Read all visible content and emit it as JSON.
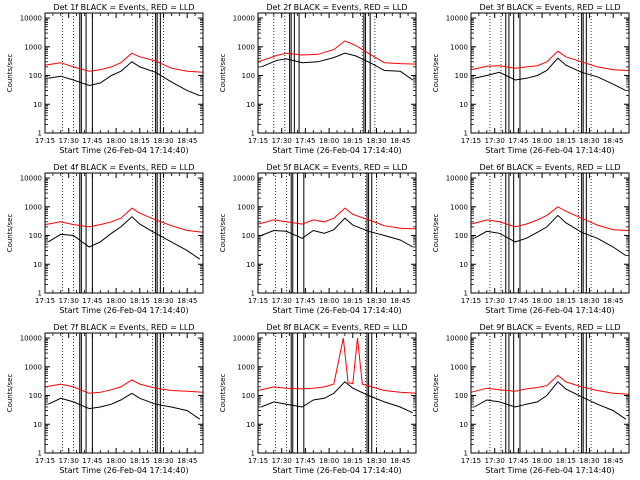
{
  "chart_data": {
    "type": "line",
    "x_tick_labels": [
      "17:15",
      "17:30",
      "17:45",
      "18:00",
      "18:15",
      "18:30",
      "18:45"
    ],
    "x_ticks_min": [
      0,
      15,
      30,
      45,
      60,
      75,
      90
    ],
    "x_range_min": [
      0,
      100
    ],
    "y_tick_labels": [
      "1",
      "10",
      "100",
      "1000",
      "10000"
    ],
    "y_range": [
      1,
      15000
    ],
    "y_scale": "log",
    "series_colors": {
      "events": "#000000",
      "lld": "#ff0000"
    },
    "panels": [
      {
        "title": "Det 1f BLACK = Events, RED = LLD",
        "ylabel": "Counts/sec",
        "xlabel": "Start Time (26-Feb-04 17:14:40)",
        "red": [
          [
            0,
            230
          ],
          [
            10,
            280
          ],
          [
            18,
            200
          ],
          [
            28,
            140
          ],
          [
            35,
            160
          ],
          [
            42,
            200
          ],
          [
            48,
            280
          ],
          [
            55,
            600
          ],
          [
            60,
            450
          ],
          [
            70,
            320
          ],
          [
            80,
            180
          ],
          [
            90,
            140
          ],
          [
            100,
            130
          ]
        ],
        "black": [
          [
            2,
            80
          ],
          [
            10,
            95
          ],
          [
            18,
            70
          ],
          [
            28,
            45
          ],
          [
            35,
            55
          ],
          [
            42,
            100
          ],
          [
            48,
            140
          ],
          [
            55,
            300
          ],
          [
            60,
            200
          ],
          [
            70,
            130
          ],
          [
            80,
            60
          ],
          [
            90,
            30
          ],
          [
            98,
            20
          ]
        ],
        "vlines_dotted": [
          11,
          18,
          68,
          75
        ],
        "vlines_solid": [
          22,
          23,
          26,
          30,
          70,
          71,
          73
        ]
      },
      {
        "title": "Det 2f BLACK = Events, RED = LLD",
        "ylabel": "Counts/sec",
        "xlabel": "Start Time (26-Feb-04 17:14:40)",
        "red": [
          [
            0,
            300
          ],
          [
            12,
            500
          ],
          [
            18,
            600
          ],
          [
            28,
            520
          ],
          [
            38,
            550
          ],
          [
            48,
            800
          ],
          [
            55,
            1600
          ],
          [
            62,
            1100
          ],
          [
            72,
            500
          ],
          [
            80,
            280
          ],
          [
            90,
            260
          ],
          [
            100,
            250
          ]
        ],
        "black": [
          [
            2,
            200
          ],
          [
            12,
            340
          ],
          [
            18,
            380
          ],
          [
            28,
            280
          ],
          [
            38,
            300
          ],
          [
            48,
            420
          ],
          [
            55,
            600
          ],
          [
            62,
            480
          ],
          [
            72,
            260
          ],
          [
            80,
            150
          ],
          [
            90,
            140
          ],
          [
            98,
            70
          ]
        ],
        "vlines_dotted": [
          10,
          17,
          66,
          74
        ],
        "vlines_solid": [
          20,
          21,
          23,
          26,
          67,
          68,
          71
        ]
      },
      {
        "title": "Det 3f BLACK = Events, RED = LLD",
        "ylabel": "Counts/sec",
        "xlabel": "Start Time (26-Feb-04 17:14:40)",
        "red": [
          [
            0,
            160
          ],
          [
            10,
            210
          ],
          [
            18,
            220
          ],
          [
            28,
            180
          ],
          [
            35,
            200
          ],
          [
            42,
            220
          ],
          [
            48,
            300
          ],
          [
            55,
            700
          ],
          [
            60,
            450
          ],
          [
            70,
            300
          ],
          [
            80,
            200
          ],
          [
            90,
            160
          ],
          [
            100,
            150
          ]
        ],
        "black": [
          [
            2,
            80
          ],
          [
            10,
            100
          ],
          [
            18,
            130
          ],
          [
            28,
            70
          ],
          [
            35,
            80
          ],
          [
            42,
            100
          ],
          [
            48,
            150
          ],
          [
            55,
            400
          ],
          [
            60,
            230
          ],
          [
            70,
            130
          ],
          [
            80,
            90
          ],
          [
            90,
            50
          ],
          [
            98,
            30
          ]
        ],
        "vlines_dotted": [
          12,
          19,
          68,
          76
        ],
        "vlines_solid": [
          22,
          24,
          27,
          31,
          70,
          71,
          73
        ]
      },
      {
        "title": "Det 4f BLACK = Events, RED = LLD",
        "ylabel": "Counts/sec",
        "xlabel": "Start Time (26-Feb-04 17:14:40)",
        "red": [
          [
            0,
            240
          ],
          [
            10,
            300
          ],
          [
            18,
            240
          ],
          [
            28,
            200
          ],
          [
            35,
            240
          ],
          [
            42,
            300
          ],
          [
            48,
            400
          ],
          [
            55,
            900
          ],
          [
            60,
            600
          ],
          [
            70,
            350
          ],
          [
            80,
            220
          ],
          [
            90,
            150
          ],
          [
            100,
            130
          ]
        ],
        "black": [
          [
            2,
            60
          ],
          [
            10,
            110
          ],
          [
            18,
            100
          ],
          [
            28,
            40
          ],
          [
            35,
            60
          ],
          [
            42,
            120
          ],
          [
            48,
            200
          ],
          [
            55,
            450
          ],
          [
            60,
            250
          ],
          [
            70,
            120
          ],
          [
            80,
            60
          ],
          [
            90,
            30
          ],
          [
            98,
            15
          ]
        ],
        "vlines_dotted": [
          11,
          18,
          68,
          75
        ],
        "vlines_solid": [
          22,
          23,
          26,
          30,
          70,
          71,
          73
        ]
      },
      {
        "title": "Det 5f BLACK = Events, RED = LLD",
        "ylabel": "Counts/sec",
        "xlabel": "Start Time (26-Feb-04 17:14:40)",
        "red": [
          [
            0,
            250
          ],
          [
            10,
            350
          ],
          [
            18,
            300
          ],
          [
            28,
            250
          ],
          [
            35,
            350
          ],
          [
            42,
            300
          ],
          [
            48,
            400
          ],
          [
            55,
            900
          ],
          [
            60,
            550
          ],
          [
            70,
            350
          ],
          [
            80,
            220
          ],
          [
            90,
            180
          ],
          [
            100,
            170
          ]
        ],
        "black": [
          [
            2,
            100
          ],
          [
            10,
            150
          ],
          [
            18,
            140
          ],
          [
            28,
            80
          ],
          [
            35,
            150
          ],
          [
            42,
            120
          ],
          [
            48,
            160
          ],
          [
            55,
            400
          ],
          [
            60,
            230
          ],
          [
            70,
            140
          ],
          [
            80,
            100
          ],
          [
            90,
            70
          ],
          [
            98,
            40
          ]
        ],
        "vlines_dotted": [
          11,
          18,
          68,
          75
        ],
        "vlines_solid": [
          21,
          22,
          25,
          29,
          69,
          70,
          72
        ]
      },
      {
        "title": "Det 6f BLACK = Events, RED = LLD",
        "ylabel": "Counts/sec",
        "xlabel": "Start Time (26-Feb-04 17:14:40)",
        "red": [
          [
            0,
            250
          ],
          [
            10,
            350
          ],
          [
            18,
            300
          ],
          [
            28,
            200
          ],
          [
            35,
            250
          ],
          [
            42,
            350
          ],
          [
            48,
            500
          ],
          [
            55,
            1000
          ],
          [
            60,
            700
          ],
          [
            70,
            400
          ],
          [
            80,
            230
          ],
          [
            90,
            160
          ],
          [
            100,
            150
          ]
        ],
        "black": [
          [
            2,
            80
          ],
          [
            10,
            140
          ],
          [
            18,
            120
          ],
          [
            28,
            60
          ],
          [
            35,
            80
          ],
          [
            42,
            130
          ],
          [
            48,
            200
          ],
          [
            55,
            500
          ],
          [
            60,
            280
          ],
          [
            70,
            130
          ],
          [
            80,
            80
          ],
          [
            90,
            40
          ],
          [
            98,
            20
          ]
        ],
        "vlines_dotted": [
          12,
          19,
          68,
          76
        ],
        "vlines_solid": [
          22,
          24,
          27,
          31,
          70,
          71,
          73
        ]
      },
      {
        "title": "Det 7f BLACK = Events, RED = LLD",
        "ylabel": "Counts/sec",
        "xlabel": "Start Time (26-Feb-04 17:14:40)",
        "red": [
          [
            0,
            200
          ],
          [
            10,
            250
          ],
          [
            18,
            200
          ],
          [
            28,
            120
          ],
          [
            35,
            130
          ],
          [
            42,
            160
          ],
          [
            48,
            200
          ],
          [
            55,
            350
          ],
          [
            60,
            250
          ],
          [
            70,
            180
          ],
          [
            80,
            150
          ],
          [
            90,
            140
          ],
          [
            100,
            130
          ]
        ],
        "black": [
          [
            2,
            50
          ],
          [
            10,
            80
          ],
          [
            18,
            60
          ],
          [
            28,
            35
          ],
          [
            35,
            40
          ],
          [
            42,
            50
          ],
          [
            48,
            70
          ],
          [
            55,
            120
          ],
          [
            60,
            80
          ],
          [
            70,
            50
          ],
          [
            80,
            40
          ],
          [
            90,
            30
          ],
          [
            98,
            15
          ]
        ],
        "vlines_dotted": [
          11,
          18,
          68,
          75
        ],
        "vlines_solid": [
          22,
          23,
          26,
          30,
          70,
          71,
          73
        ]
      },
      {
        "title": "Det 8f BLACK = Events, RED = LLD",
        "ylabel": "Counts/sec",
        "xlabel": "Start Time (26-Feb-04 17:14:40)",
        "red": [
          [
            0,
            150
          ],
          [
            10,
            200
          ],
          [
            18,
            180
          ],
          [
            28,
            170
          ],
          [
            35,
            180
          ],
          [
            42,
            200
          ],
          [
            48,
            250
          ],
          [
            54,
            10000
          ],
          [
            57,
            280
          ],
          [
            60,
            260
          ],
          [
            63,
            10000
          ],
          [
            66,
            250
          ],
          [
            72,
            200
          ],
          [
            80,
            150
          ],
          [
            90,
            130
          ],
          [
            100,
            120
          ]
        ],
        "black": [
          [
            2,
            40
          ],
          [
            10,
            60
          ],
          [
            18,
            50
          ],
          [
            28,
            40
          ],
          [
            35,
            70
          ],
          [
            42,
            80
          ],
          [
            48,
            120
          ],
          [
            55,
            300
          ],
          [
            60,
            180
          ],
          [
            70,
            100
          ],
          [
            80,
            60
          ],
          [
            90,
            40
          ],
          [
            98,
            25
          ]
        ],
        "vlines_dotted": [
          11,
          18,
          68,
          75
        ],
        "vlines_solid": [
          21,
          22,
          25,
          29,
          69,
          70,
          72
        ]
      },
      {
        "title": "Det 9f BLACK = Events, RED = LLD",
        "ylabel": "Counts/sec",
        "xlabel": "Start Time (26-Feb-04 17:14:40)",
        "red": [
          [
            0,
            130
          ],
          [
            10,
            180
          ],
          [
            18,
            160
          ],
          [
            28,
            140
          ],
          [
            35,
            170
          ],
          [
            42,
            190
          ],
          [
            48,
            220
          ],
          [
            55,
            500
          ],
          [
            60,
            300
          ],
          [
            70,
            200
          ],
          [
            80,
            150
          ],
          [
            90,
            120
          ],
          [
            100,
            110
          ]
        ],
        "black": [
          [
            2,
            40
          ],
          [
            10,
            70
          ],
          [
            18,
            60
          ],
          [
            28,
            40
          ],
          [
            35,
            50
          ],
          [
            42,
            60
          ],
          [
            48,
            100
          ],
          [
            55,
            300
          ],
          [
            60,
            170
          ],
          [
            70,
            90
          ],
          [
            80,
            50
          ],
          [
            90,
            30
          ],
          [
            98,
            15
          ]
        ],
        "vlines_dotted": [
          12,
          19,
          68,
          76
        ],
        "vlines_solid": [
          22,
          24,
          27,
          31,
          70,
          71,
          73
        ]
      }
    ]
  }
}
